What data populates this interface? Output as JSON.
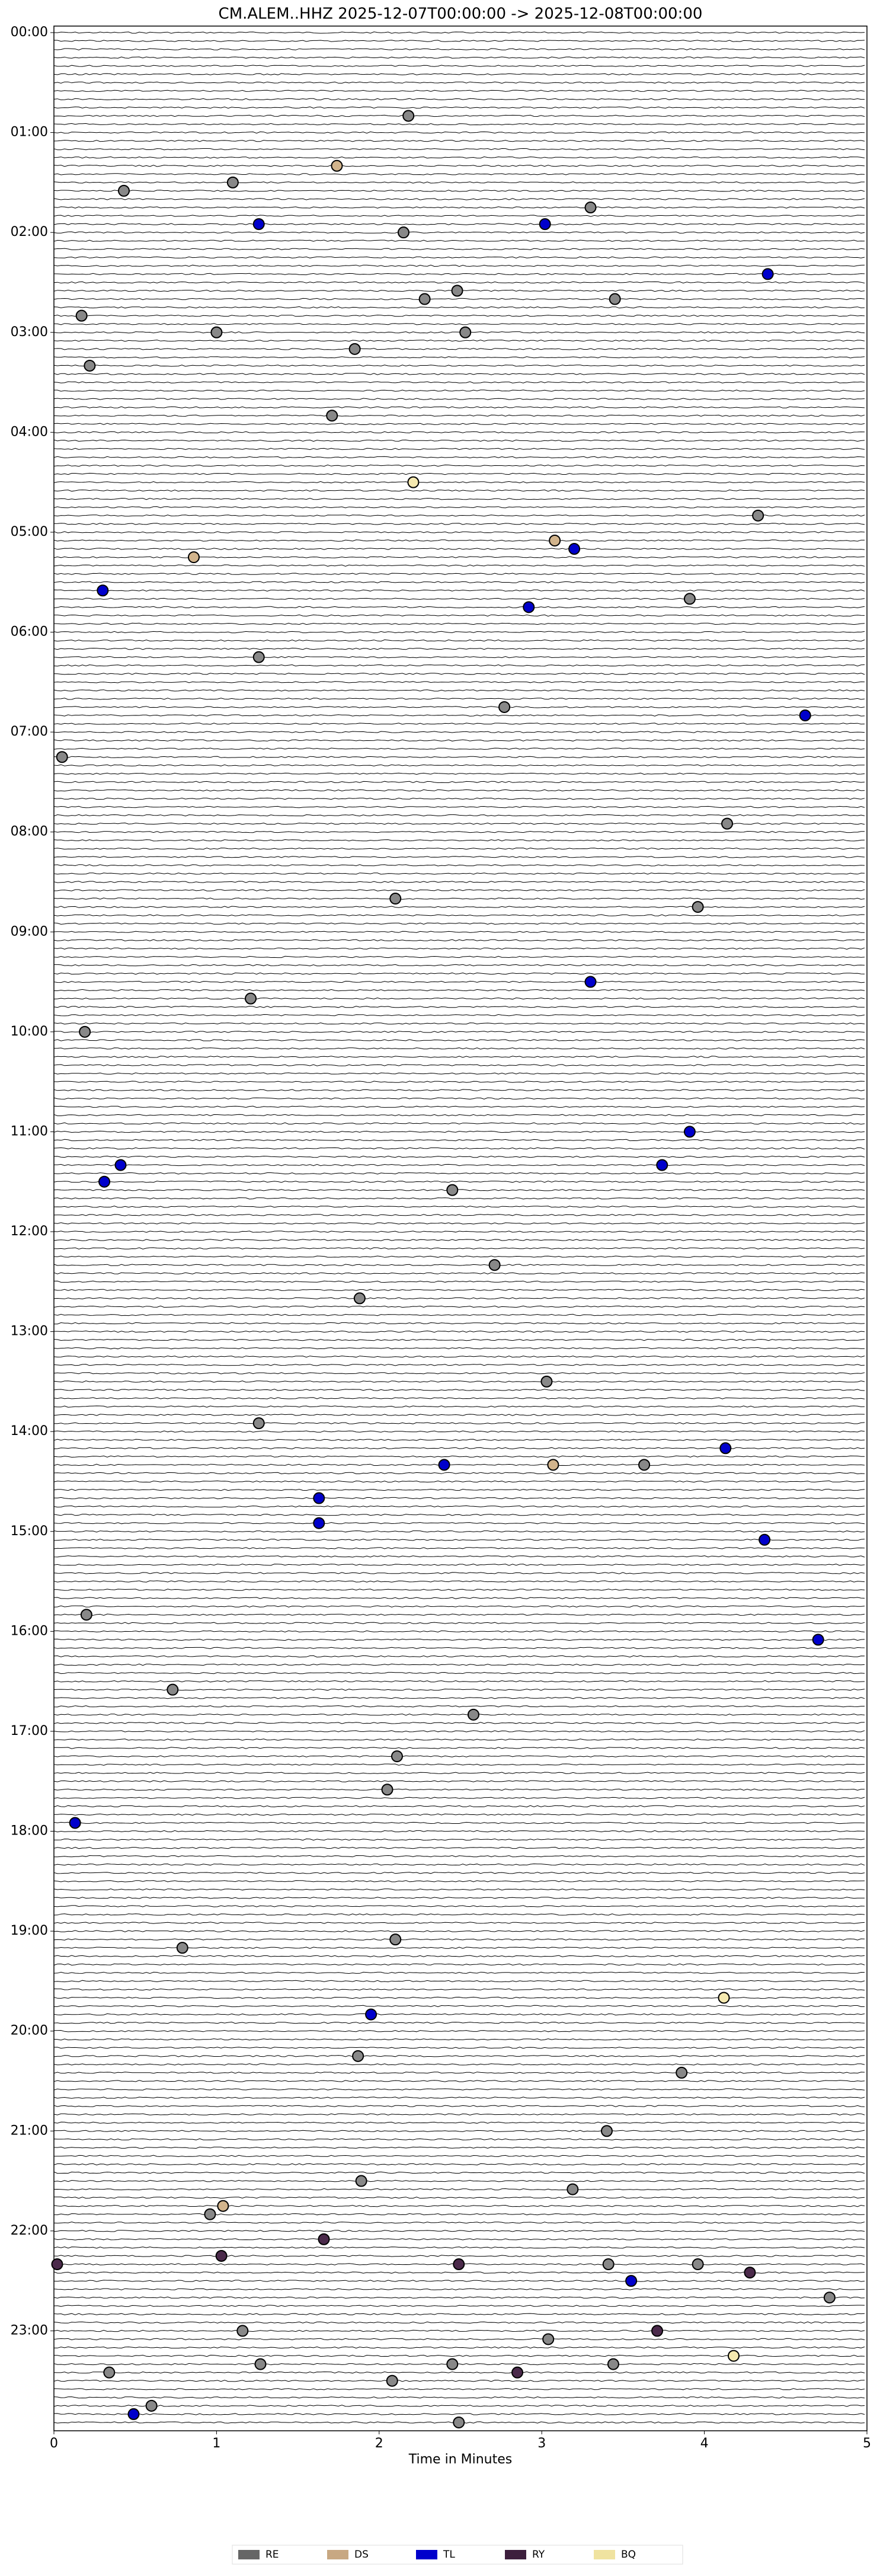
{
  "chart_data": {
    "type": "helicorder",
    "title": "CM.ALEM..HHZ  2025-12-07T00:00:00 -> 2025-12-08T00:00:00",
    "xlabel": "Time in Minutes",
    "xlim": [
      0,
      5
    ],
    "xticks": [
      0,
      1,
      2,
      3,
      4,
      5
    ],
    "ylim": [
      0,
      1440
    ],
    "yticks": [
      {
        "value": 0,
        "label": "00:00"
      },
      {
        "value": 60,
        "label": "01:00"
      },
      {
        "value": 120,
        "label": "02:00"
      },
      {
        "value": 180,
        "label": "03:00"
      },
      {
        "value": 240,
        "label": "04:00"
      },
      {
        "value": 300,
        "label": "05:00"
      },
      {
        "value": 360,
        "label": "06:00"
      },
      {
        "value": 420,
        "label": "07:00"
      },
      {
        "value": 480,
        "label": "08:00"
      },
      {
        "value": 540,
        "label": "09:00"
      },
      {
        "value": 600,
        "label": "10:00"
      },
      {
        "value": 660,
        "label": "11:00"
      },
      {
        "value": 720,
        "label": "12:00"
      },
      {
        "value": 780,
        "label": "13:00"
      },
      {
        "value": 840,
        "label": "14:00"
      },
      {
        "value": 900,
        "label": "15:00"
      },
      {
        "value": 960,
        "label": "16:00"
      },
      {
        "value": 1020,
        "label": "17:00"
      },
      {
        "value": 1080,
        "label": "18:00"
      },
      {
        "value": 1140,
        "label": "19:00"
      },
      {
        "value": 1200,
        "label": "20:00"
      },
      {
        "value": 1260,
        "label": "21:00"
      },
      {
        "value": 1320,
        "label": "22:00"
      },
      {
        "value": 1380,
        "label": "23:00"
      }
    ],
    "series": [
      {
        "name": "RE",
        "color": "#888888",
        "legend_color": "#666666",
        "x": [
          2.18,
          0.43,
          1.1,
          3.3,
          2.15,
          2.48,
          2.28,
          3.45,
          0.17,
          2.53,
          1.0,
          1.85,
          0.22,
          1.71,
          4.33,
          3.91,
          1.26,
          2.77,
          0.05,
          4.14,
          2.1,
          3.96,
          1.21,
          0.19,
          2.45,
          2.71,
          1.88,
          3.03,
          1.26,
          3.63,
          0.2,
          0.73,
          2.58,
          2.11,
          2.05,
          0.79,
          2.1,
          1.87,
          3.86,
          3.4,
          1.89,
          3.19,
          0.96,
          3.41,
          3.96,
          4.77,
          1.16,
          3.04,
          1.27,
          0.34,
          2.45,
          3.44,
          2.08,
          0.6,
          2.49
        ],
        "values": [
          50,
          95,
          90,
          105,
          120,
          155,
          160,
          160,
          170,
          180,
          180,
          190,
          200,
          230,
          290,
          340,
          375,
          405,
          435,
          475,
          520,
          525,
          580,
          600,
          695,
          740,
          760,
          810,
          835,
          860,
          950,
          995,
          1010,
          1035,
          1055,
          1150,
          1145,
          1215,
          1225,
          1260,
          1290,
          1295,
          1310,
          1340,
          1340,
          1360,
          1380,
          1385,
          1400,
          1405,
          1400,
          1400,
          1410,
          1425,
          1435
        ]
      },
      {
        "name": "DS",
        "color": "#d2b48c",
        "legend_color": "#c8a882",
        "x": [
          1.74,
          0.86,
          3.08,
          3.07,
          1.04
        ],
        "values": [
          80,
          315,
          305,
          860,
          1305
        ]
      },
      {
        "name": "TL",
        "color": "#0000cc",
        "legend_color": "#0000cc",
        "x": [
          1.26,
          3.02,
          4.39,
          3.2,
          0.3,
          2.92,
          4.62,
          3.3,
          3.91,
          0.41,
          3.74,
          0.31,
          4.13,
          2.4,
          1.63,
          1.63,
          4.37,
          4.7,
          0.13,
          1.95,
          3.55,
          0.49
        ],
        "values": [
          115,
          115,
          145,
          310,
          335,
          345,
          410,
          570,
          660,
          680,
          680,
          690,
          850,
          860,
          880,
          895,
          905,
          965,
          1075,
          1190,
          1350,
          1430
        ]
      },
      {
        "name": "RY",
        "color": "#4b2a4b",
        "legend_color": "#3d1f3d",
        "x": [
          0.02,
          1.03,
          2.49,
          4.28,
          1.66,
          2.85,
          3.71
        ],
        "values": [
          1340,
          1335,
          1340,
          1345,
          1325,
          1405,
          1380
        ]
      },
      {
        "name": "BQ",
        "color": "#f5e9b0",
        "legend_color": "#f0e3a0",
        "x": [
          2.21,
          4.12,
          4.18
        ],
        "values": [
          270,
          1180,
          1395
        ]
      }
    ]
  }
}
